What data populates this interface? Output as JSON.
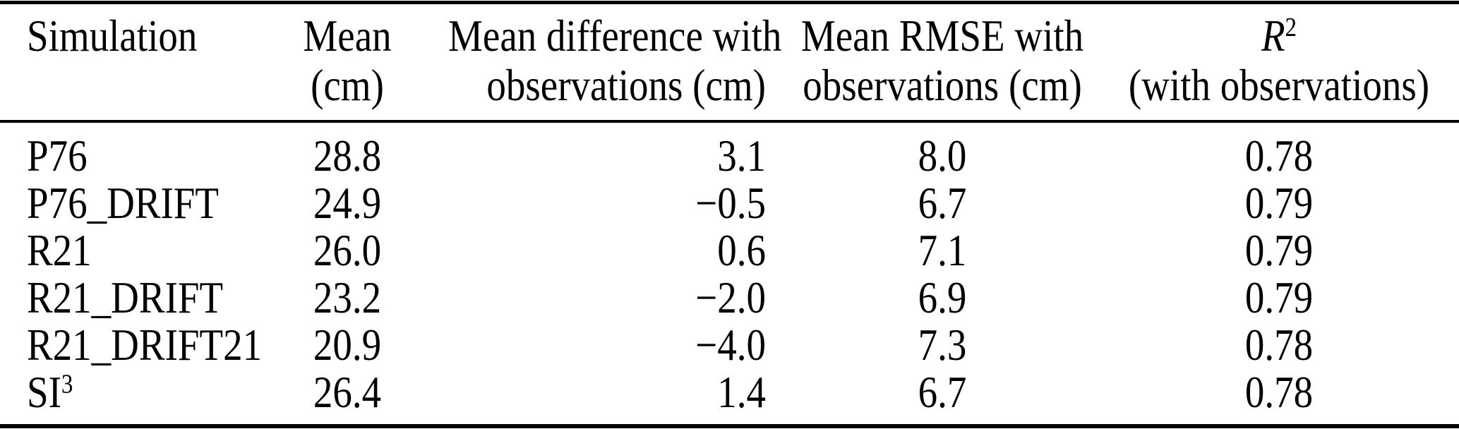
{
  "page": {
    "background": "#ffffff",
    "text_color": "#000000"
  },
  "table": {
    "header": {
      "simulation": {
        "line1": "Simulation"
      },
      "mean": {
        "line1": "Mean",
        "line2": "(cm)"
      },
      "mean_diff": {
        "line1": "Mean difference with",
        "line2": "observations (cm)"
      },
      "rmse": {
        "line1": "Mean RMSE with",
        "line2": "observations (cm)"
      },
      "r2": {
        "base": "R",
        "sup": "2",
        "line2": "(with observations)"
      }
    },
    "rows": [
      {
        "sim_base": "P76",
        "sim_sup": "",
        "mean": "28.8",
        "mean_diff": "3.1",
        "rmse": "8.0",
        "r2": "0.78"
      },
      {
        "sim_base": "P76_DRIFT",
        "sim_sup": "",
        "mean": "24.9",
        "mean_diff": "−0.5",
        "rmse": "6.7",
        "r2": "0.79"
      },
      {
        "sim_base": "R21",
        "sim_sup": "",
        "mean": "26.0",
        "mean_diff": "0.6",
        "rmse": "7.1",
        "r2": "0.79"
      },
      {
        "sim_base": "R21_DRIFT",
        "sim_sup": "",
        "mean": "23.2",
        "mean_diff": "−2.0",
        "rmse": "6.9",
        "r2": "0.79"
      },
      {
        "sim_base": "R21_DRIFT21",
        "sim_sup": "",
        "mean": "20.9",
        "mean_diff": "−4.0",
        "rmse": "7.3",
        "r2": "0.78"
      },
      {
        "sim_base": "SI",
        "sim_sup": "3",
        "mean": "26.4",
        "mean_diff": "1.4",
        "rmse": "6.7",
        "r2": "0.78"
      }
    ]
  },
  "chart_data": {
    "type": "table",
    "columns": [
      "Simulation",
      "Mean (cm)",
      "Mean difference with observations (cm)",
      "Mean RMSE with observations (cm)",
      "R2 (with observations)"
    ],
    "rows": [
      [
        "P76",
        28.8,
        3.1,
        8.0,
        0.78
      ],
      [
        "P76_DRIFT",
        24.9,
        -0.5,
        6.7,
        0.79
      ],
      [
        "R21",
        26.0,
        0.6,
        7.1,
        0.79
      ],
      [
        "R21_DRIFT",
        23.2,
        -2.0,
        6.9,
        0.79
      ],
      [
        "R21_DRIFT21",
        20.9,
        -4.0,
        7.3,
        0.78
      ],
      [
        "SI3",
        26.4,
        1.4,
        6.7,
        0.78
      ]
    ]
  }
}
